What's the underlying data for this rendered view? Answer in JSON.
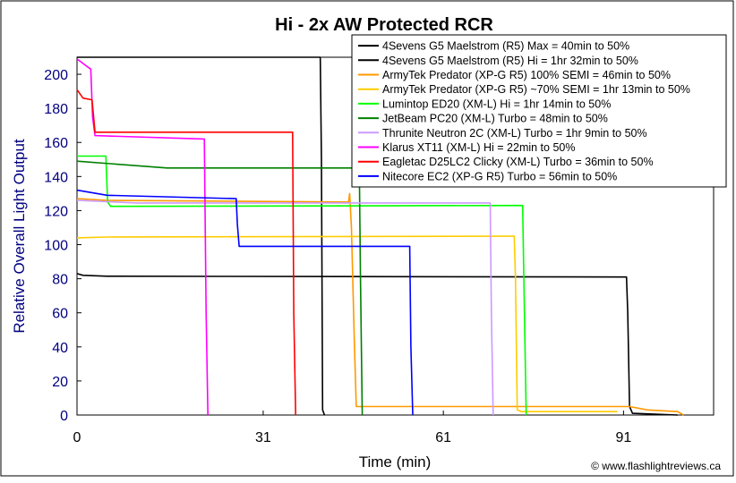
{
  "chart_data": {
    "type": "line",
    "title": "Hi - 2x AW Protected RCR",
    "xlabel": "Time (min)",
    "ylabel": "Relative Overall Light Output",
    "xlim": [
      0,
      106
    ],
    "ylim": [
      0,
      210
    ],
    "xticks": [
      0,
      31,
      61,
      91
    ],
    "yticks": [
      0,
      20,
      40,
      60,
      80,
      100,
      120,
      140,
      160,
      180,
      200
    ],
    "grid": false,
    "legend_position": "top-right",
    "credit": "© www.flashlightreviews.ca",
    "series": [
      {
        "name": "4Sevens G5 Maelstrom (R5) Max = 40min to 50%",
        "color": "#000000",
        "points": [
          [
            0,
            210
          ],
          [
            40.5,
            210
          ],
          [
            40.7,
            150
          ],
          [
            40.9,
            3
          ],
          [
            41.2,
            0
          ]
        ]
      },
      {
        "name": "4Sevens G5 Maelstrom (R5) Hi = 1hr 32min to 50%",
        "color": "#000000",
        "points": [
          [
            0,
            83
          ],
          [
            1,
            82
          ],
          [
            5,
            81.5
          ],
          [
            91.5,
            81
          ],
          [
            91.7,
            60
          ],
          [
            92,
            5
          ],
          [
            92.5,
            1
          ],
          [
            100,
            0
          ]
        ]
      },
      {
        "name": "ArmyTek Predator (XP-G R5) 100% SEMI = 46min to 50%",
        "color": "#FF9900",
        "points": [
          [
            0,
            127
          ],
          [
            5,
            126
          ],
          [
            45.2,
            125
          ],
          [
            45.4,
            130
          ],
          [
            45.7,
            110
          ],
          [
            46.2,
            40
          ],
          [
            46.5,
            5
          ],
          [
            50,
            5
          ],
          [
            92,
            5
          ],
          [
            95,
            3
          ],
          [
            100,
            2
          ],
          [
            101,
            0
          ]
        ]
      },
      {
        "name": "ArmyTek Predator (XP-G R5) ~70% SEMI = 1hr 13min to 50%",
        "color": "#FFCC00",
        "points": [
          [
            0,
            104
          ],
          [
            5,
            104.5
          ],
          [
            72.8,
            105
          ],
          [
            73,
            80
          ],
          [
            73.3,
            3
          ],
          [
            74,
            2
          ],
          [
            90,
            2
          ]
        ]
      },
      {
        "name": "Lumintop ED20 (XM-L) Hi = 1hr 14min to 50%",
        "color": "#00FF00",
        "points": [
          [
            0,
            152
          ],
          [
            4.8,
            152
          ],
          [
            5.1,
            125
          ],
          [
            5.6,
            122.5
          ],
          [
            74.2,
            123
          ],
          [
            74.5,
            60
          ],
          [
            74.8,
            0
          ]
        ]
      },
      {
        "name": "JetBeam PC20 (XM-L) Turbo = 48min to 50%",
        "color": "#008000",
        "points": [
          [
            0,
            149
          ],
          [
            15,
            145
          ],
          [
            47,
            145
          ],
          [
            47.2,
            80
          ],
          [
            47.5,
            0
          ]
        ]
      },
      {
        "name": "Thrunite Neutron 2C (XM-L) Turbo = 1hr 9min to 50%",
        "color": "#CC99FF",
        "points": [
          [
            0,
            126
          ],
          [
            10,
            124.5
          ],
          [
            68.8,
            124.5
          ],
          [
            69,
            60
          ],
          [
            69.3,
            0
          ]
        ]
      },
      {
        "name": "Klarus XT11 (XM-L) Hi = 22min to 50%",
        "color": "#FF00FF",
        "points": [
          [
            0,
            209
          ],
          [
            1.5,
            205
          ],
          [
            2.3,
            203
          ],
          [
            2.6,
            175
          ],
          [
            3,
            164
          ],
          [
            21.2,
            162
          ],
          [
            21.5,
            60
          ],
          [
            21.8,
            0
          ]
        ]
      },
      {
        "name": "Eagletac D25LC2 Clicky (XM-L) Turbo = 36min to 50%",
        "color": "#FF0000",
        "points": [
          [
            0,
            191
          ],
          [
            1,
            186
          ],
          [
            2.5,
            185
          ],
          [
            3,
            166
          ],
          [
            35.9,
            166
          ],
          [
            36.1,
            60
          ],
          [
            36.4,
            0
          ]
        ]
      },
      {
        "name": "Nitecore EC2 (XP-G R5) Turbo = 56min to 50%",
        "color": "#0000FF",
        "points": [
          [
            0,
            132
          ],
          [
            5,
            129
          ],
          [
            26.5,
            127
          ],
          [
            26.7,
            112
          ],
          [
            27,
            99
          ],
          [
            55.4,
            99
          ],
          [
            55.6,
            40
          ],
          [
            55.9,
            0
          ]
        ]
      }
    ]
  }
}
